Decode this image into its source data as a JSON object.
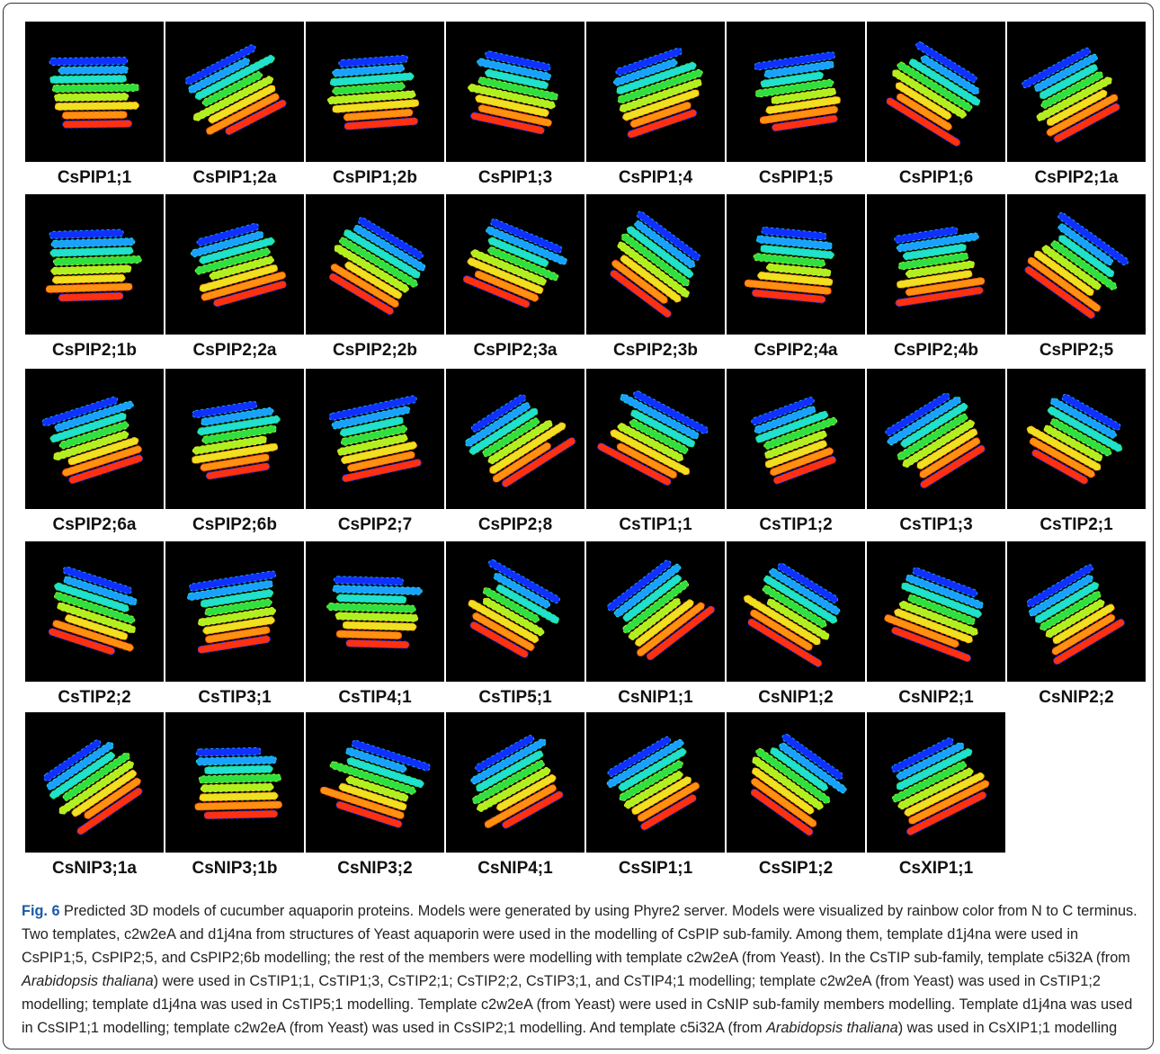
{
  "figure": {
    "panels": [
      "CsPIP1;1",
      "CsPIP1;2a",
      "CsPIP1;2b",
      "CsPIP1;3",
      "CsPIP1;4",
      "CsPIP1;5",
      "CsPIP1;6",
      "CsPIP2;1a",
      "CsPIP2;1b",
      "CsPIP2;2a",
      "CsPIP2;2b",
      "CsPIP2;3a",
      "CsPIP2;3b",
      "CsPIP2;4a",
      "CsPIP2;4b",
      "CsPIP2;5",
      "CsPIP2;6a",
      "CsPIP2;6b",
      "CsPIP2;7",
      "CsPIP2;8",
      "CsTIP1;1",
      "CsTIP1;2",
      "CsTIP1;3",
      "CsTIP2;1",
      "CsTIP2;2",
      "CsTIP3;1",
      "CsTIP4;1",
      "CsTIP5;1",
      "CsNIP1;1",
      "CsNIP1;2",
      "CsNIP2;1",
      "CsNIP2;2",
      "CsNIP3;1a",
      "CsNIP3;1b",
      "CsNIP3;2",
      "CsNIP4;1",
      "CsSIP1;1",
      "CsSIP1;2",
      "CsXIP1;1"
    ]
  },
  "caption": {
    "label": "Fig. 6",
    "parts": [
      {
        "text": " Predicted 3D models of cucumber aquaporin proteins. Models were generated by using Phyre2 server. Models were visualized by rainbow color from N to C terminus. Two templates, c2w2eA and d1j4na from structures of Yeast aquaporin were used in the modelling of CsPIP sub-family. Among them, template d1j4na were used in CsPIP1;5, CsPIP2;5, and CsPIP2;6b modelling; the rest of the members were modelling with template c2w2eA (from Yeast). In the CsTIP sub-family, template c5i32A (from ",
        "italic": false
      },
      {
        "text": "Arabidopsis thaliana",
        "italic": true
      },
      {
        "text": ") were used in CsTIP1;1, CsTIP1;3, CsTIP2;1; CsTIP2;2, CsTIP3;1, and CsTIP4;1 modelling; template c2w2eA (from Yeast) was used in CsTIP1;2 modelling; template d1j4na was used in CsTIP5;1 modelling. Template c2w2eA (from Yeast) were used in CsNIP sub-family members modelling. Template d1j4na was used in CsSIP1;1 modelling; template c2w2eA (from Yeast) was used in CsSIP2;1 modelling. And template c5i32A (from ",
        "italic": false
      },
      {
        "text": "Arabidopsis thaliana",
        "italic": true
      },
      {
        "text": ") was used in CsXIP1;1 modelling",
        "italic": false
      }
    ]
  }
}
